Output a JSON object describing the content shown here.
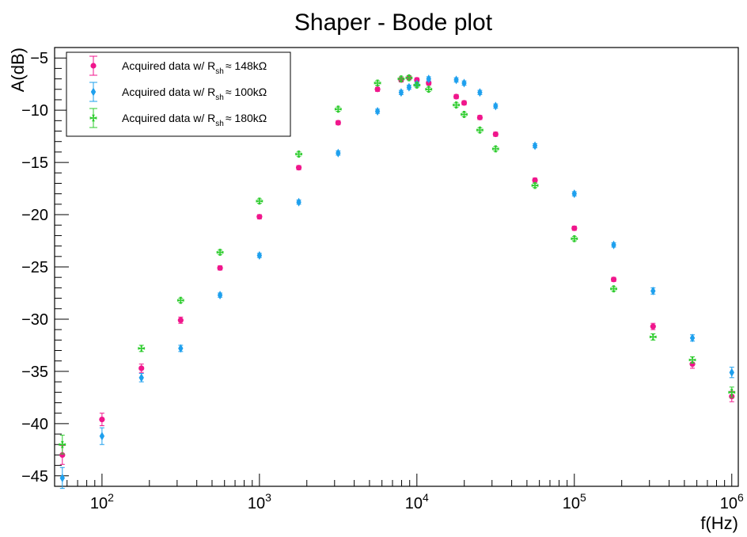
{
  "chart_data": {
    "type": "scatter",
    "title": "Shaper - Bode plot",
    "xlabel": "f(Hz)",
    "ylabel": "A(dB)",
    "x_scale": "log",
    "xlim": [
      50,
      1100000
    ],
    "ylim": [
      -46,
      -4
    ],
    "x_ticks": [
      {
        "value": 100,
        "base": "10",
        "exp": "2"
      },
      {
        "value": 1000,
        "base": "10",
        "exp": "3"
      },
      {
        "value": 10000,
        "base": "10",
        "exp": "4"
      },
      {
        "value": 100000,
        "base": "10",
        "exp": "5"
      },
      {
        "value": 1000000,
        "base": "10",
        "exp": "6"
      }
    ],
    "y_ticks": [
      -45,
      -40,
      -35,
      -30,
      -25,
      -20,
      -15,
      -10,
      -5
    ],
    "y_tick_labels": [
      "−45",
      "−40",
      "−35",
      "−30",
      "−25",
      "−20",
      "−15",
      "−10",
      "−5"
    ],
    "grid": false,
    "legend_position": "top-left",
    "series": [
      {
        "legend_prefix": "Acquired data w/ R",
        "legend_sub": "sh",
        "legend_suffix": "≈ 148kΩ",
        "color": "#f0168c",
        "marker": "circle",
        "points": [
          {
            "x": 56,
            "y": -43.0,
            "err": 0.9
          },
          {
            "x": 100,
            "y": -39.6,
            "err": 0.6
          },
          {
            "x": 178,
            "y": -34.7,
            "err": 0.4
          },
          {
            "x": 316,
            "y": -30.1,
            "err": 0.3
          },
          {
            "x": 562,
            "y": -25.1,
            "err": 0.2
          },
          {
            "x": 1000,
            "y": -20.2,
            "err": 0.2
          },
          {
            "x": 1778,
            "y": -15.5,
            "err": 0.2
          },
          {
            "x": 3162,
            "y": -11.2,
            "err": 0.2
          },
          {
            "x": 5623,
            "y": -8.0,
            "err": 0.2
          },
          {
            "x": 7943,
            "y": -7.1,
            "err": 0.2
          },
          {
            "x": 8913,
            "y": -6.9,
            "err": 0.2
          },
          {
            "x": 10000,
            "y": -7.1,
            "err": 0.2
          },
          {
            "x": 11885,
            "y": -7.4,
            "err": 0.2
          },
          {
            "x": 17783,
            "y": -8.7,
            "err": 0.2
          },
          {
            "x": 19953,
            "y": -9.3,
            "err": 0.2
          },
          {
            "x": 25119,
            "y": -10.7,
            "err": 0.2
          },
          {
            "x": 31623,
            "y": -12.3,
            "err": 0.2
          },
          {
            "x": 56234,
            "y": -16.7,
            "err": 0.2
          },
          {
            "x": 100000,
            "y": -21.3,
            "err": 0.2
          },
          {
            "x": 177828,
            "y": -26.2,
            "err": 0.2
          },
          {
            "x": 316228,
            "y": -30.7,
            "err": 0.3
          },
          {
            "x": 562341,
            "y": -34.3,
            "err": 0.4
          },
          {
            "x": 1000000,
            "y": -37.4,
            "err": 0.5
          }
        ]
      },
      {
        "legend_prefix": "Acquired data w/ R",
        "legend_sub": "sh",
        "legend_suffix": "≈ 100kΩ",
        "color": "#1ea0ee",
        "marker": "diamond",
        "points": [
          {
            "x": 56,
            "y": -45.2,
            "err": 1.0
          },
          {
            "x": 100,
            "y": -41.2,
            "err": 0.8
          },
          {
            "x": 178,
            "y": -35.6,
            "err": 0.4
          },
          {
            "x": 316,
            "y": -32.8,
            "err": 0.3
          },
          {
            "x": 562,
            "y": -27.7,
            "err": 0.2
          },
          {
            "x": 1000,
            "y": -23.9,
            "err": 0.2
          },
          {
            "x": 1778,
            "y": -18.8,
            "err": 0.2
          },
          {
            "x": 3162,
            "y": -14.1,
            "err": 0.2
          },
          {
            "x": 5623,
            "y": -10.1,
            "err": 0.2
          },
          {
            "x": 7943,
            "y": -8.3,
            "err": 0.2
          },
          {
            "x": 8913,
            "y": -7.8,
            "err": 0.2
          },
          {
            "x": 10000,
            "y": -7.5,
            "err": 0.2
          },
          {
            "x": 11885,
            "y": -7.0,
            "err": 0.2
          },
          {
            "x": 17783,
            "y": -7.1,
            "err": 0.2
          },
          {
            "x": 19953,
            "y": -7.4,
            "err": 0.2
          },
          {
            "x": 25119,
            "y": -8.3,
            "err": 0.2
          },
          {
            "x": 31623,
            "y": -9.6,
            "err": 0.2
          },
          {
            "x": 56234,
            "y": -13.4,
            "err": 0.2
          },
          {
            "x": 100000,
            "y": -18.0,
            "err": 0.2
          },
          {
            "x": 177828,
            "y": -22.9,
            "err": 0.2
          },
          {
            "x": 316228,
            "y": -27.3,
            "err": 0.3
          },
          {
            "x": 562341,
            "y": -31.8,
            "err": 0.3
          },
          {
            "x": 1000000,
            "y": -35.1,
            "err": 0.5
          }
        ]
      },
      {
        "legend_prefix": "Acquired data w/ R",
        "legend_sub": "sh",
        "legend_suffix": "≈ 180kΩ",
        "color": "#2ecc2e",
        "marker": "cross",
        "points": [
          {
            "x": 56,
            "y": -42.0,
            "err": 0.9
          },
          {
            "x": 178,
            "y": -32.8,
            "err": 0.3
          },
          {
            "x": 316,
            "y": -28.2,
            "err": 0.2
          },
          {
            "x": 562,
            "y": -23.6,
            "err": 0.2
          },
          {
            "x": 1000,
            "y": -18.7,
            "err": 0.2
          },
          {
            "x": 1778,
            "y": -14.2,
            "err": 0.2
          },
          {
            "x": 3162,
            "y": -9.9,
            "err": 0.2
          },
          {
            "x": 5623,
            "y": -7.4,
            "err": 0.2
          },
          {
            "x": 7943,
            "y": -7.0,
            "err": 0.2
          },
          {
            "x": 8913,
            "y": -6.9,
            "err": 0.2
          },
          {
            "x": 10000,
            "y": -7.6,
            "err": 0.2
          },
          {
            "x": 11885,
            "y": -8.0,
            "err": 0.2
          },
          {
            "x": 17783,
            "y": -9.5,
            "err": 0.2
          },
          {
            "x": 19953,
            "y": -10.4,
            "err": 0.2
          },
          {
            "x": 25119,
            "y": -11.9,
            "err": 0.2
          },
          {
            "x": 31623,
            "y": -13.7,
            "err": 0.2
          },
          {
            "x": 56234,
            "y": -17.2,
            "err": 0.2
          },
          {
            "x": 100000,
            "y": -22.3,
            "err": 0.2
          },
          {
            "x": 177828,
            "y": -27.1,
            "err": 0.2
          },
          {
            "x": 316228,
            "y": -31.7,
            "err": 0.3
          },
          {
            "x": 562341,
            "y": -33.9,
            "err": 0.3
          },
          {
            "x": 1000000,
            "y": -37.0,
            "err": 0.5
          }
        ]
      }
    ]
  }
}
